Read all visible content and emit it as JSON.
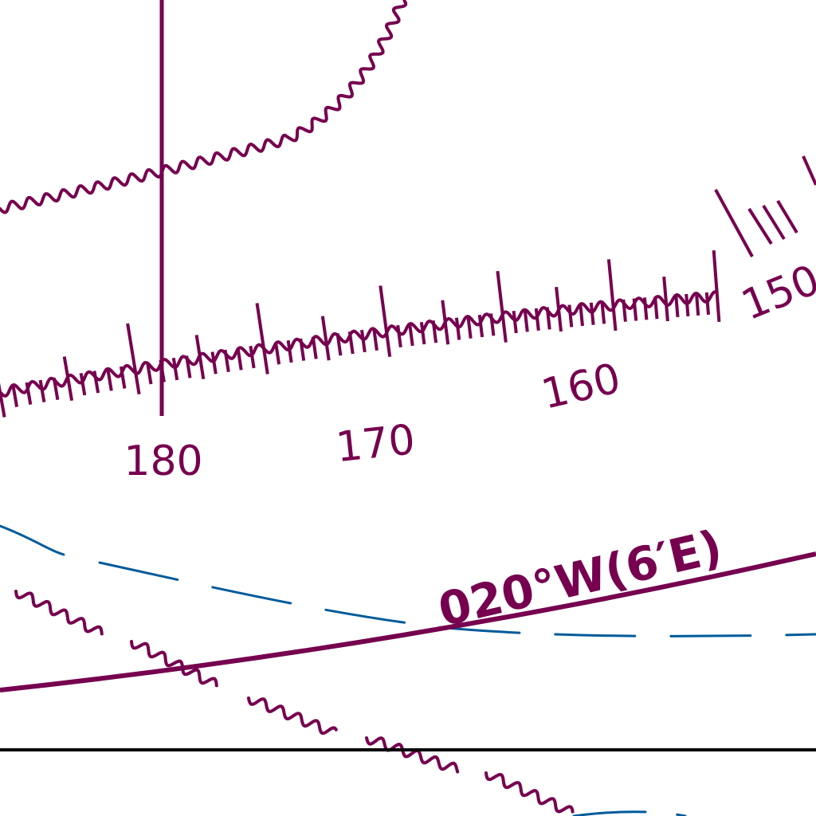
{
  "map": {
    "colors": {
      "aero": "#76004f",
      "water": "#005b9a",
      "boundary": "#000000",
      "background": "#ffffff"
    },
    "compass_rose": {
      "bearing_labels": [
        {
          "id": "label-180",
          "text": "180"
        },
        {
          "id": "label-170",
          "text": "170"
        },
        {
          "id": "label-160",
          "text": "160"
        },
        {
          "id": "label-150",
          "text": "150"
        }
      ]
    },
    "radial": {
      "label": "020°W(6′E)"
    }
  }
}
